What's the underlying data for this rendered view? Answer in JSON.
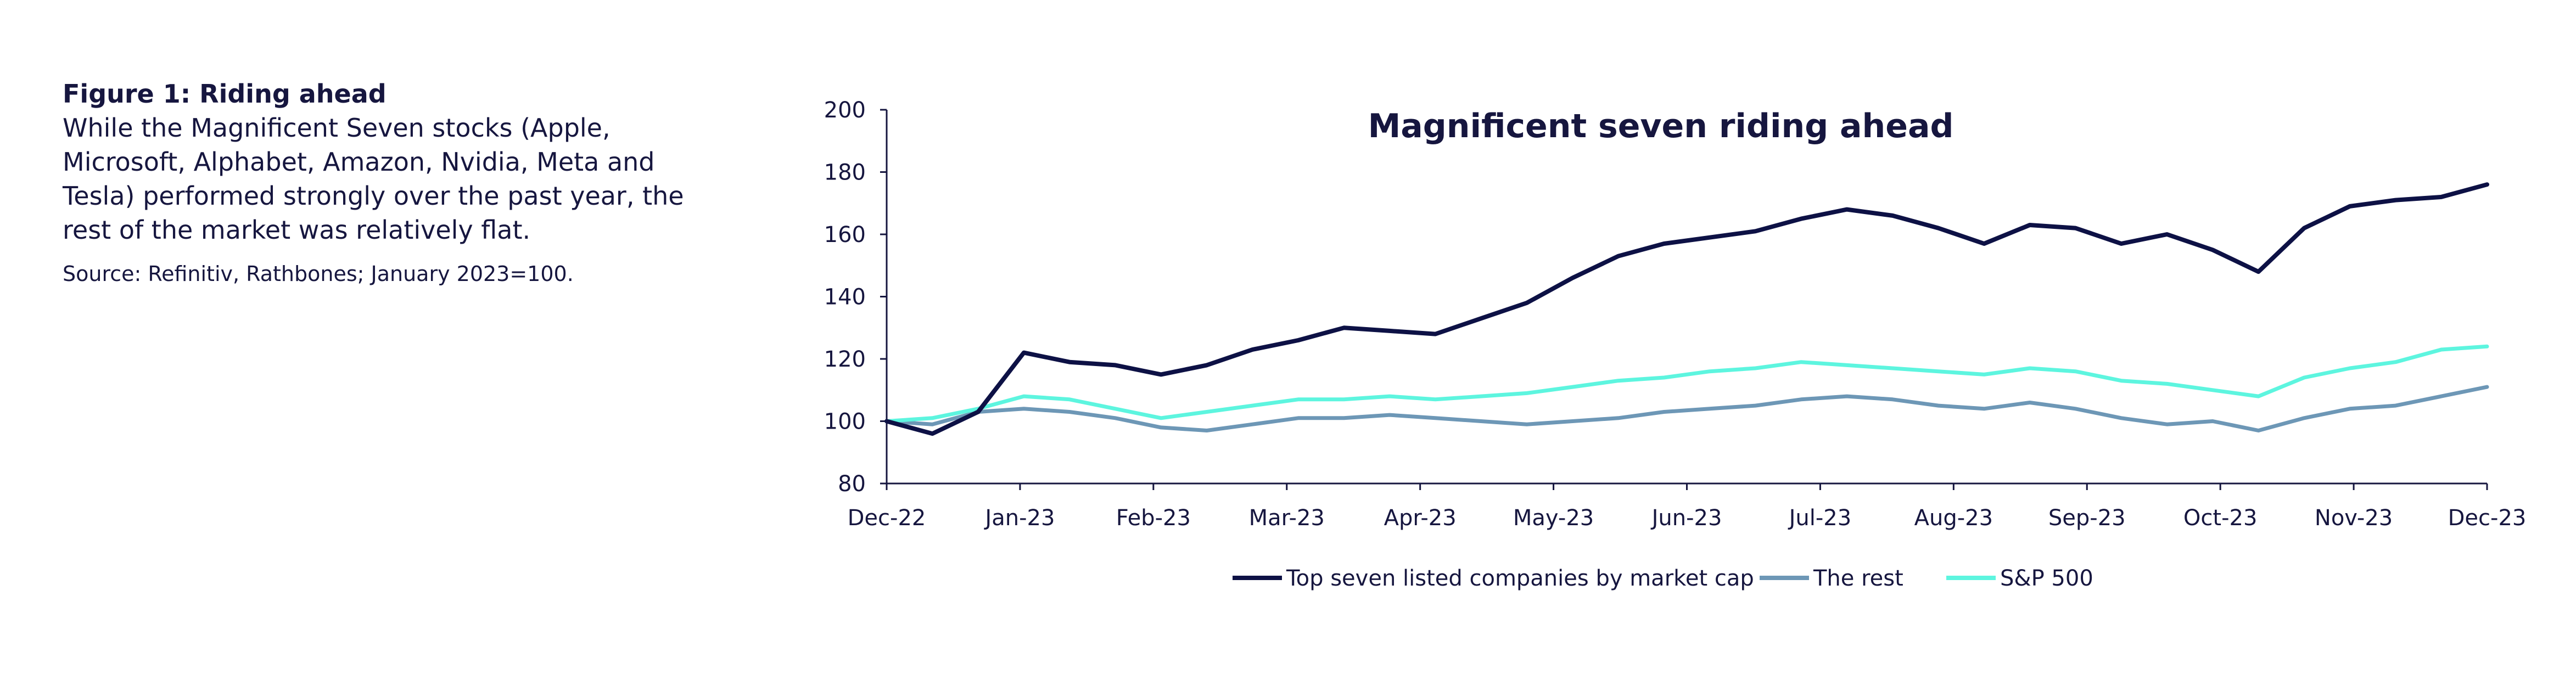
{
  "figure": {
    "title": "Figure 1: Riding ahead",
    "caption": "While the Magnificent Seven stocks (Apple, Microsoft, Alphabet, Amazon, Nvidia, Meta and Tesla) performed strongly over the past year, the rest of the market was relatively flat.",
    "source": "Source:  Refinitiv, Rathbones; January 2023=100."
  },
  "chart_data": {
    "type": "line",
    "title": "Magnificent seven riding ahead",
    "xlabel": "",
    "ylabel": "",
    "x_ticks": [
      "Dec-22",
      "Jan-23",
      "Feb-23",
      "Mar-23",
      "Apr-23",
      "May-23",
      "Jun-23",
      "Jul-23",
      "Aug-23",
      "Sep-23",
      "Oct-23",
      "Nov-23",
      "Dec-23"
    ],
    "y_ticks": [
      80,
      100,
      120,
      140,
      160,
      180,
      200
    ],
    "ylim": [
      80,
      200
    ],
    "grid": false,
    "legend_position": "bottom",
    "series": [
      {
        "name": "Top seven listed companies by market cap",
        "color": "#0d1145",
        "x": [
          "Dec-22",
          "Dec-22",
          "Jan-23",
          "Jan-23",
          "Jan-23",
          "Feb-23",
          "Feb-23",
          "Feb-23",
          "Mar-23",
          "Mar-23",
          "Mar-23",
          "Apr-23",
          "Apr-23",
          "Apr-23",
          "May-23",
          "May-23",
          "May-23",
          "Jun-23",
          "Jun-23",
          "Jun-23",
          "Jul-23",
          "Jul-23",
          "Jul-23",
          "Aug-23",
          "Aug-23",
          "Aug-23",
          "Sep-23",
          "Sep-23",
          "Sep-23",
          "Oct-23",
          "Oct-23",
          "Oct-23",
          "Nov-23",
          "Nov-23",
          "Nov-23",
          "Dec-23"
        ],
        "values": [
          100,
          96,
          103,
          122,
          119,
          118,
          115,
          118,
          123,
          126,
          130,
          129,
          128,
          133,
          138,
          146,
          153,
          157,
          159,
          161,
          165,
          168,
          166,
          162,
          157,
          163,
          162,
          157,
          160,
          155,
          148,
          162,
          169,
          171,
          172,
          176
        ]
      },
      {
        "name": "The rest",
        "color": "#6d97b6",
        "x": [
          "Dec-22",
          "Dec-22",
          "Jan-23",
          "Jan-23",
          "Jan-23",
          "Feb-23",
          "Feb-23",
          "Feb-23",
          "Mar-23",
          "Mar-23",
          "Mar-23",
          "Apr-23",
          "Apr-23",
          "Apr-23",
          "May-23",
          "May-23",
          "May-23",
          "Jun-23",
          "Jun-23",
          "Jun-23",
          "Jul-23",
          "Jul-23",
          "Jul-23",
          "Aug-23",
          "Aug-23",
          "Aug-23",
          "Sep-23",
          "Sep-23",
          "Sep-23",
          "Oct-23",
          "Oct-23",
          "Oct-23",
          "Nov-23",
          "Nov-23",
          "Nov-23",
          "Dec-23"
        ],
        "values": [
          100,
          99,
          103,
          104,
          103,
          101,
          98,
          97,
          99,
          101,
          101,
          102,
          101,
          100,
          99,
          100,
          101,
          103,
          104,
          105,
          107,
          108,
          107,
          105,
          104,
          106,
          104,
          101,
          99,
          100,
          97,
          101,
          104,
          105,
          108,
          111
        ]
      },
      {
        "name": "S&P 500",
        "color": "#5df5df",
        "x": [
          "Dec-22",
          "Dec-22",
          "Jan-23",
          "Jan-23",
          "Jan-23",
          "Feb-23",
          "Feb-23",
          "Feb-23",
          "Mar-23",
          "Mar-23",
          "Mar-23",
          "Apr-23",
          "Apr-23",
          "Apr-23",
          "May-23",
          "May-23",
          "May-23",
          "Jun-23",
          "Jun-23",
          "Jun-23",
          "Jul-23",
          "Jul-23",
          "Jul-23",
          "Aug-23",
          "Aug-23",
          "Aug-23",
          "Sep-23",
          "Sep-23",
          "Sep-23",
          "Oct-23",
          "Oct-23",
          "Oct-23",
          "Nov-23",
          "Nov-23",
          "Nov-23",
          "Dec-23"
        ],
        "values": [
          100,
          101,
          104,
          108,
          107,
          104,
          101,
          103,
          105,
          107,
          107,
          108,
          107,
          108,
          109,
          111,
          113,
          114,
          116,
          117,
          119,
          118,
          117,
          116,
          115,
          117,
          116,
          113,
          112,
          110,
          108,
          114,
          117,
          119,
          123,
          124
        ]
      }
    ]
  }
}
